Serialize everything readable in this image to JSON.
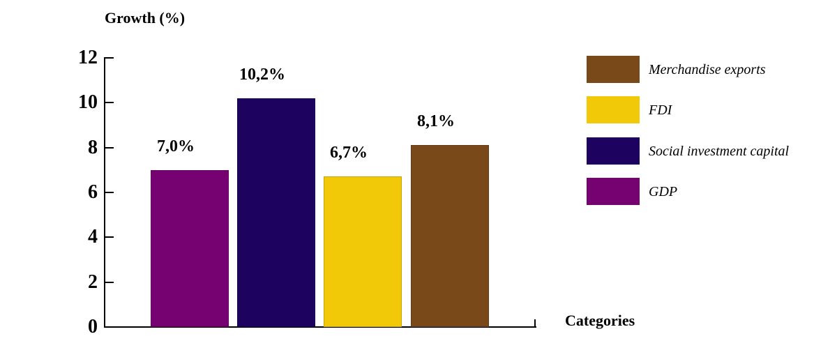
{
  "chart_data": {
    "type": "bar",
    "title": "Growth (%)",
    "xlabel": "Categories",
    "ylabel": "Growth (%)",
    "categories": [
      "GDP",
      "Social investment capital",
      "FDI",
      "Merchandise exports"
    ],
    "values": [
      7.0,
      10.2,
      6.7,
      8.1
    ],
    "value_labels": [
      "7,0%",
      "10,2%",
      "6,7%",
      "8,1%"
    ],
    "bar_colors": [
      "#760272",
      "#1E0260",
      "#F2C908",
      "#7A491A"
    ],
    "ylim": [
      0,
      12
    ],
    "yticks": [
      0,
      2,
      4,
      6,
      8,
      10,
      12
    ],
    "grid": false,
    "legend_position": "right",
    "legend": [
      {
        "label": "Merchandise exports",
        "color": "#7A491A"
      },
      {
        "label": "FDI",
        "color": "#F2C908"
      },
      {
        "label": "Social investment capital",
        "color": "#1E0260"
      },
      {
        "label": "GDP",
        "color": "#760272"
      }
    ]
  }
}
